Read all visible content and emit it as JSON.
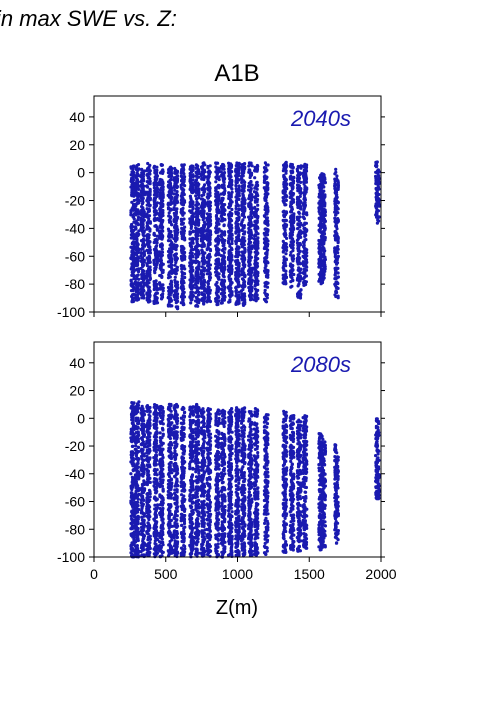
{
  "page": {
    "title_fragment": "in max SWE vs. Z:"
  },
  "colors": {
    "points": "#1a1ab0",
    "period_label": "#1a1ab0",
    "axes": "#000000"
  },
  "chart_data": [
    {
      "type": "scatter",
      "title": "A1B",
      "annotation": "2040s",
      "xlabel": "",
      "ylabel": "",
      "xlim": [
        0,
        2000
      ],
      "ylim": [
        -100,
        55
      ],
      "yticks": [
        -100,
        -80,
        -60,
        -40,
        -20,
        0,
        20,
        40
      ],
      "xticks": [
        0,
        500,
        1000,
        1500,
        2000
      ],
      "show_x_tick_labels": false,
      "grid": false,
      "columns": [
        {
          "x": 270,
          "min": -93,
          "max": 5
        },
        {
          "x": 300,
          "min": -92,
          "max": 6
        },
        {
          "x": 340,
          "min": -90,
          "max": 5
        },
        {
          "x": 380,
          "min": -93,
          "max": 7
        },
        {
          "x": 430,
          "min": -94,
          "max": 5
        },
        {
          "x": 470,
          "min": -92,
          "max": 6
        },
        {
          "x": 530,
          "min": -96,
          "max": 4
        },
        {
          "x": 570,
          "min": -98,
          "max": 4
        },
        {
          "x": 620,
          "min": -95,
          "max": 6
        },
        {
          "x": 680,
          "min": -94,
          "max": 5
        },
        {
          "x": 720,
          "min": -96,
          "max": 6
        },
        {
          "x": 760,
          "min": -95,
          "max": 7
        },
        {
          "x": 800,
          "min": -93,
          "max": 6
        },
        {
          "x": 860,
          "min": -95,
          "max": 7
        },
        {
          "x": 900,
          "min": -94,
          "max": 6
        },
        {
          "x": 950,
          "min": -93,
          "max": 7
        },
        {
          "x": 1000,
          "min": -95,
          "max": 8
        },
        {
          "x": 1040,
          "min": -96,
          "max": 7
        },
        {
          "x": 1090,
          "min": -92,
          "max": 8
        },
        {
          "x": 1130,
          "min": -93,
          "max": 6
        },
        {
          "x": 1200,
          "min": -94,
          "max": 7
        },
        {
          "x": 1330,
          "min": -80,
          "max": 8
        },
        {
          "x": 1380,
          "min": -83,
          "max": 6
        },
        {
          "x": 1430,
          "min": -90,
          "max": 5
        },
        {
          "x": 1470,
          "min": -82,
          "max": 6
        },
        {
          "x": 1580,
          "min": -80,
          "max": 0
        },
        {
          "x": 1600,
          "min": -77,
          "max": 0
        },
        {
          "x": 1690,
          "min": -90,
          "max": 4
        },
        {
          "x": 1975,
          "min": -38,
          "max": 8
        }
      ]
    },
    {
      "type": "scatter",
      "title": "",
      "annotation": "2080s",
      "xlabel": "Z(m)",
      "ylabel": "",
      "xlim": [
        0,
        2000
      ],
      "ylim": [
        -100,
        55
      ],
      "yticks": [
        -100,
        -80,
        -60,
        -40,
        -20,
        0,
        20,
        40
      ],
      "xticks": [
        0,
        500,
        1000,
        1500,
        2000
      ],
      "show_x_tick_labels": true,
      "grid": false,
      "columns": [
        {
          "x": 270,
          "min": -100,
          "max": 12
        },
        {
          "x": 300,
          "min": -100,
          "max": 13
        },
        {
          "x": 340,
          "min": -100,
          "max": 10
        },
        {
          "x": 380,
          "min": -100,
          "max": 12
        },
        {
          "x": 430,
          "min": -100,
          "max": 10
        },
        {
          "x": 470,
          "min": -100,
          "max": 9
        },
        {
          "x": 530,
          "min": -100,
          "max": 11
        },
        {
          "x": 570,
          "min": -100,
          "max": 10
        },
        {
          "x": 620,
          "min": -100,
          "max": 8
        },
        {
          "x": 680,
          "min": -100,
          "max": 9
        },
        {
          "x": 720,
          "min": -100,
          "max": 10
        },
        {
          "x": 760,
          "min": -100,
          "max": 8
        },
        {
          "x": 800,
          "min": -100,
          "max": 7
        },
        {
          "x": 860,
          "min": -100,
          "max": 6
        },
        {
          "x": 900,
          "min": -100,
          "max": 7
        },
        {
          "x": 950,
          "min": -100,
          "max": 8
        },
        {
          "x": 1000,
          "min": -100,
          "max": 9
        },
        {
          "x": 1040,
          "min": -100,
          "max": 8
        },
        {
          "x": 1090,
          "min": -100,
          "max": 6
        },
        {
          "x": 1130,
          "min": -100,
          "max": 7
        },
        {
          "x": 1200,
          "min": -100,
          "max": 4
        },
        {
          "x": 1330,
          "min": -97,
          "max": 5
        },
        {
          "x": 1380,
          "min": -95,
          "max": 2
        },
        {
          "x": 1430,
          "min": -97,
          "max": 0
        },
        {
          "x": 1470,
          "min": -95,
          "max": 2
        },
        {
          "x": 1580,
          "min": -95,
          "max": -10
        },
        {
          "x": 1600,
          "min": -93,
          "max": -12
        },
        {
          "x": 1690,
          "min": -93,
          "max": -18
        },
        {
          "x": 1975,
          "min": -58,
          "max": 0
        }
      ]
    }
  ]
}
